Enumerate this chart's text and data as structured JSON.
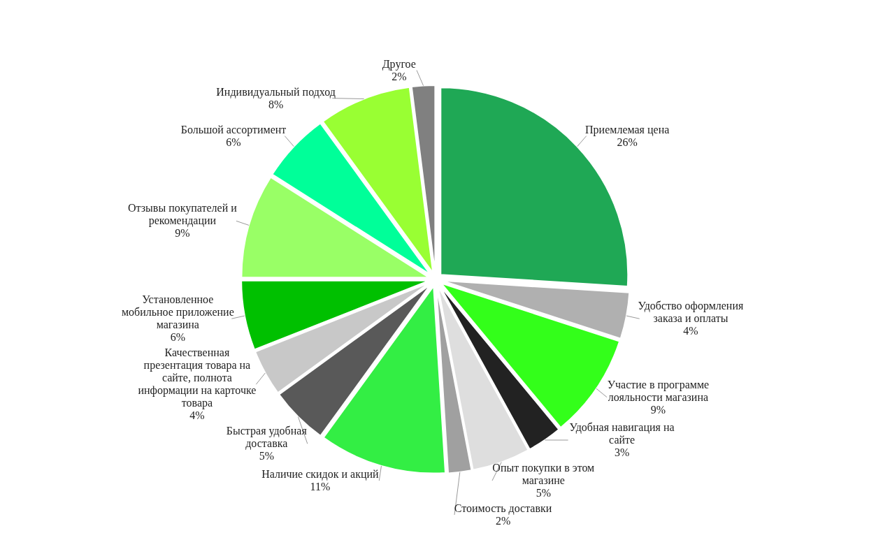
{
  "chart_data": {
    "type": "pie",
    "categories": [
      "Приемлемая цена",
      "Удобство оформления заказа и оплаты",
      "Участие в программе лояльности магазина",
      "Удобная навигация на сайте",
      "Опыт покупки в этом магазине",
      "Стоимость доставки",
      "Наличие скидок и акций",
      "Быстрая удобная доставка",
      "Качественная презентация товара на сайте, полнота информации на карточке товара",
      "Установленное мобильное приложение магазина",
      "Отзывы покупателей и рекомендации",
      "Большой ассортимент",
      "Индивидуальный подход",
      "Другое"
    ],
    "values": [
      26,
      4,
      9,
      3,
      5,
      2,
      11,
      5,
      4,
      6,
      9,
      6,
      8,
      2
    ],
    "value_labels": [
      "26%",
      "4%",
      "9%",
      "3%",
      "5%",
      "2%",
      "11%",
      "5%",
      "4%",
      "6%",
      "9%",
      "6%",
      "8%",
      "2%"
    ],
    "colors": [
      "#1fa855",
      "#b0b0b0",
      "#33ff1a",
      "#222222",
      "#dedede",
      "#a0a0a0",
      "#33ee44",
      "#595959",
      "#c8c8c8",
      "#00c000",
      "#99ff66",
      "#00ff99",
      "#99ff33",
      "#808080"
    ]
  }
}
